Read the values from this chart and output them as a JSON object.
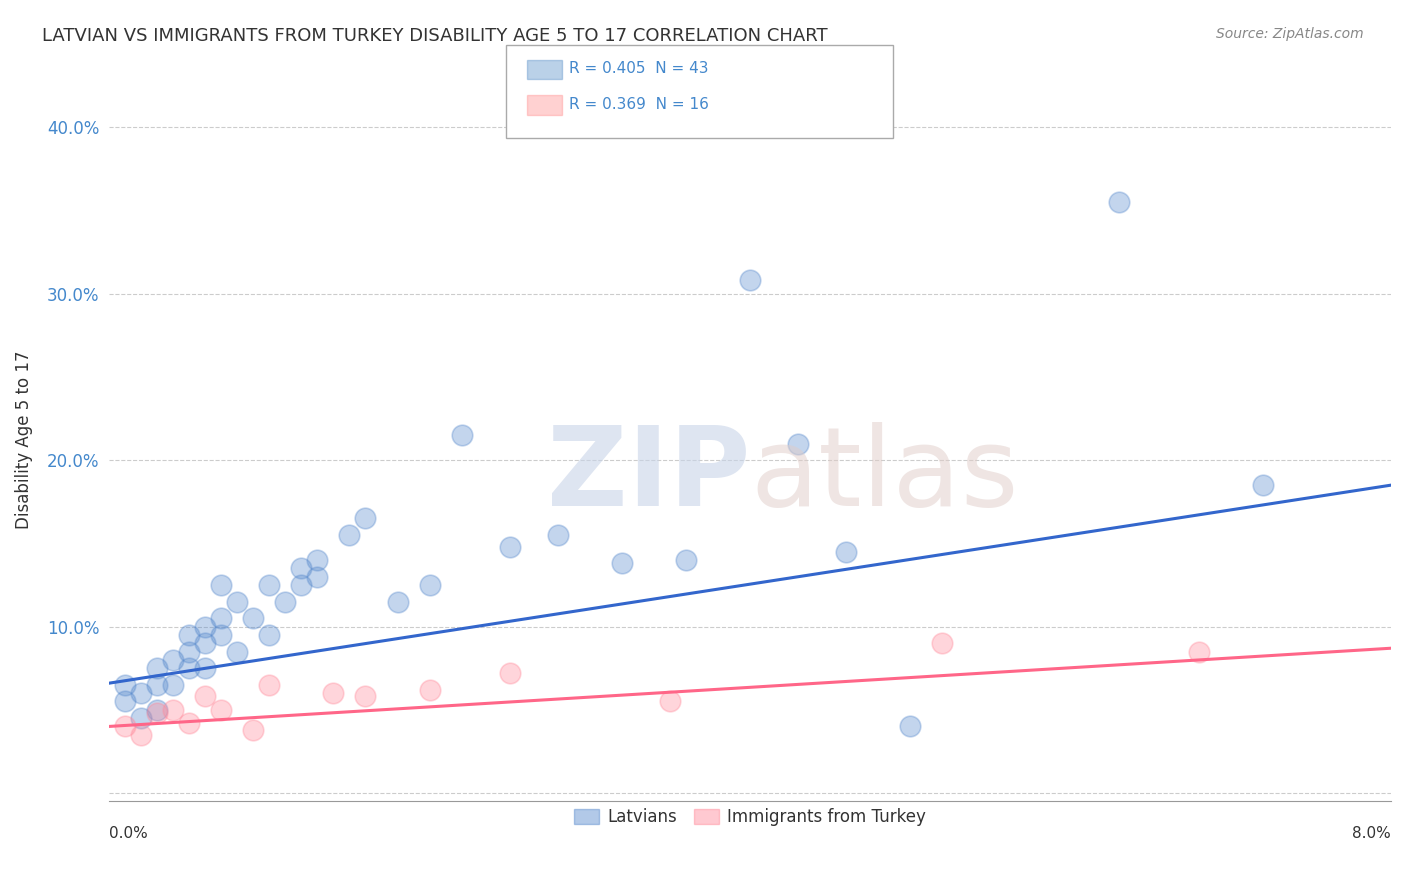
{
  "title": "LATVIAN VS IMMIGRANTS FROM TURKEY DISABILITY AGE 5 TO 17 CORRELATION CHART",
  "source": "Source: ZipAtlas.com",
  "ylabel": "Disability Age 5 to 17",
  "ytick_labels": [
    "",
    "10.0%",
    "20.0%",
    "30.0%",
    "40.0%"
  ],
  "ytick_values": [
    0.0,
    0.1,
    0.2,
    0.3,
    0.4
  ],
  "xlim": [
    0.0,
    0.08
  ],
  "ylim": [
    -0.005,
    0.43
  ],
  "legend_entries": [
    {
      "label": "R = 0.405  N = 43",
      "color": "#6699cc"
    },
    {
      "label": "R = 0.369  N = 16",
      "color": "#ff9999"
    }
  ],
  "bottom_legend": [
    "Latvians",
    "Immigrants from Turkey"
  ],
  "blue_color": "#5588cc",
  "pink_color": "#ff8899",
  "latvian_x": [
    0.001,
    0.001,
    0.002,
    0.002,
    0.003,
    0.003,
    0.003,
    0.004,
    0.004,
    0.005,
    0.005,
    0.005,
    0.006,
    0.006,
    0.006,
    0.007,
    0.007,
    0.007,
    0.008,
    0.008,
    0.009,
    0.01,
    0.01,
    0.011,
    0.012,
    0.012,
    0.013,
    0.013,
    0.015,
    0.016,
    0.018,
    0.02,
    0.022,
    0.025,
    0.028,
    0.032,
    0.036,
    0.04,
    0.043,
    0.046,
    0.05,
    0.063,
    0.072
  ],
  "latvian_y": [
    0.055,
    0.065,
    0.045,
    0.06,
    0.05,
    0.065,
    0.075,
    0.065,
    0.08,
    0.075,
    0.085,
    0.095,
    0.075,
    0.09,
    0.1,
    0.095,
    0.105,
    0.125,
    0.085,
    0.115,
    0.105,
    0.095,
    0.125,
    0.115,
    0.125,
    0.135,
    0.13,
    0.14,
    0.155,
    0.165,
    0.115,
    0.125,
    0.215,
    0.148,
    0.155,
    0.138,
    0.14,
    0.308,
    0.21,
    0.145,
    0.04,
    0.355,
    0.185
  ],
  "turkey_x": [
    0.001,
    0.002,
    0.003,
    0.004,
    0.005,
    0.006,
    0.007,
    0.009,
    0.01,
    0.014,
    0.016,
    0.02,
    0.025,
    0.035,
    0.052,
    0.068
  ],
  "turkey_y": [
    0.04,
    0.035,
    0.048,
    0.05,
    0.042,
    0.058,
    0.05,
    0.038,
    0.065,
    0.06,
    0.058,
    0.062,
    0.072,
    0.055,
    0.09,
    0.085
  ],
  "latvian_trend": [
    0.066,
    0.185
  ],
  "turkey_trend": [
    0.04,
    0.087
  ],
  "trend_x": [
    0.0,
    0.08
  ]
}
